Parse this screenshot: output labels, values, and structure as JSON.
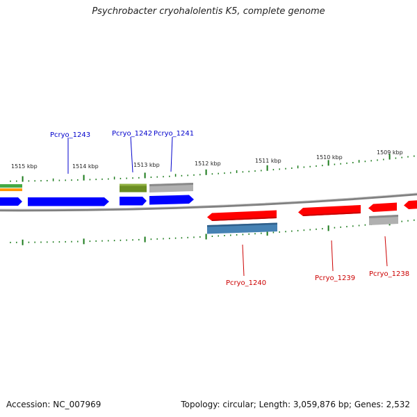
{
  "title": "Psychrobacter cryohalolentis K5, complete genome",
  "footer": {
    "accession": "Accession: NC_007969",
    "summary": "Topology: circular; Length: 3,059,876 bp; Genes: 2,532"
  },
  "colors": {
    "forward_label": "#0000cc",
    "reverse_label": "#cc0000",
    "tick": "#1a7a1a",
    "backbone": "#808080"
  },
  "scale": [
    {
      "label": "1515 kbp"
    },
    {
      "label": "1514 kbp"
    },
    {
      "label": "1513 kbp"
    },
    {
      "label": "1512 kbp"
    },
    {
      "label": "1511 kbp"
    },
    {
      "label": "1510 kbp"
    },
    {
      "label": "1509 kbp"
    }
  ],
  "features": {
    "forward_genes": [
      {
        "label": "",
        "color": "#0000ff"
      },
      {
        "label": "Pcryo_1243",
        "color": "#0000ff"
      },
      {
        "label": "Pcryo_1242",
        "color": "#0000ff"
      },
      {
        "label": "Pcryo_1241",
        "color": "#0000ff"
      }
    ],
    "forward_annotations": [
      {
        "color": "#44aa44"
      },
      {
        "color": "#ff9900"
      },
      {
        "color": "#6b8e23"
      },
      {
        "color": "#b0b0b0"
      }
    ],
    "reverse_genes": [
      {
        "label": "Pcryo_1240",
        "color": "#ff0000"
      },
      {
        "label": "Pcryo_1239",
        "color": "#ff0000"
      },
      {
        "label": "Pcryo_1238",
        "color": "#ff0000"
      },
      {
        "label": "",
        "color": "#ff0000"
      }
    ],
    "reverse_annotations": [
      {
        "color": "#4682b4"
      },
      {
        "color": "#b0b0b0"
      }
    ]
  }
}
